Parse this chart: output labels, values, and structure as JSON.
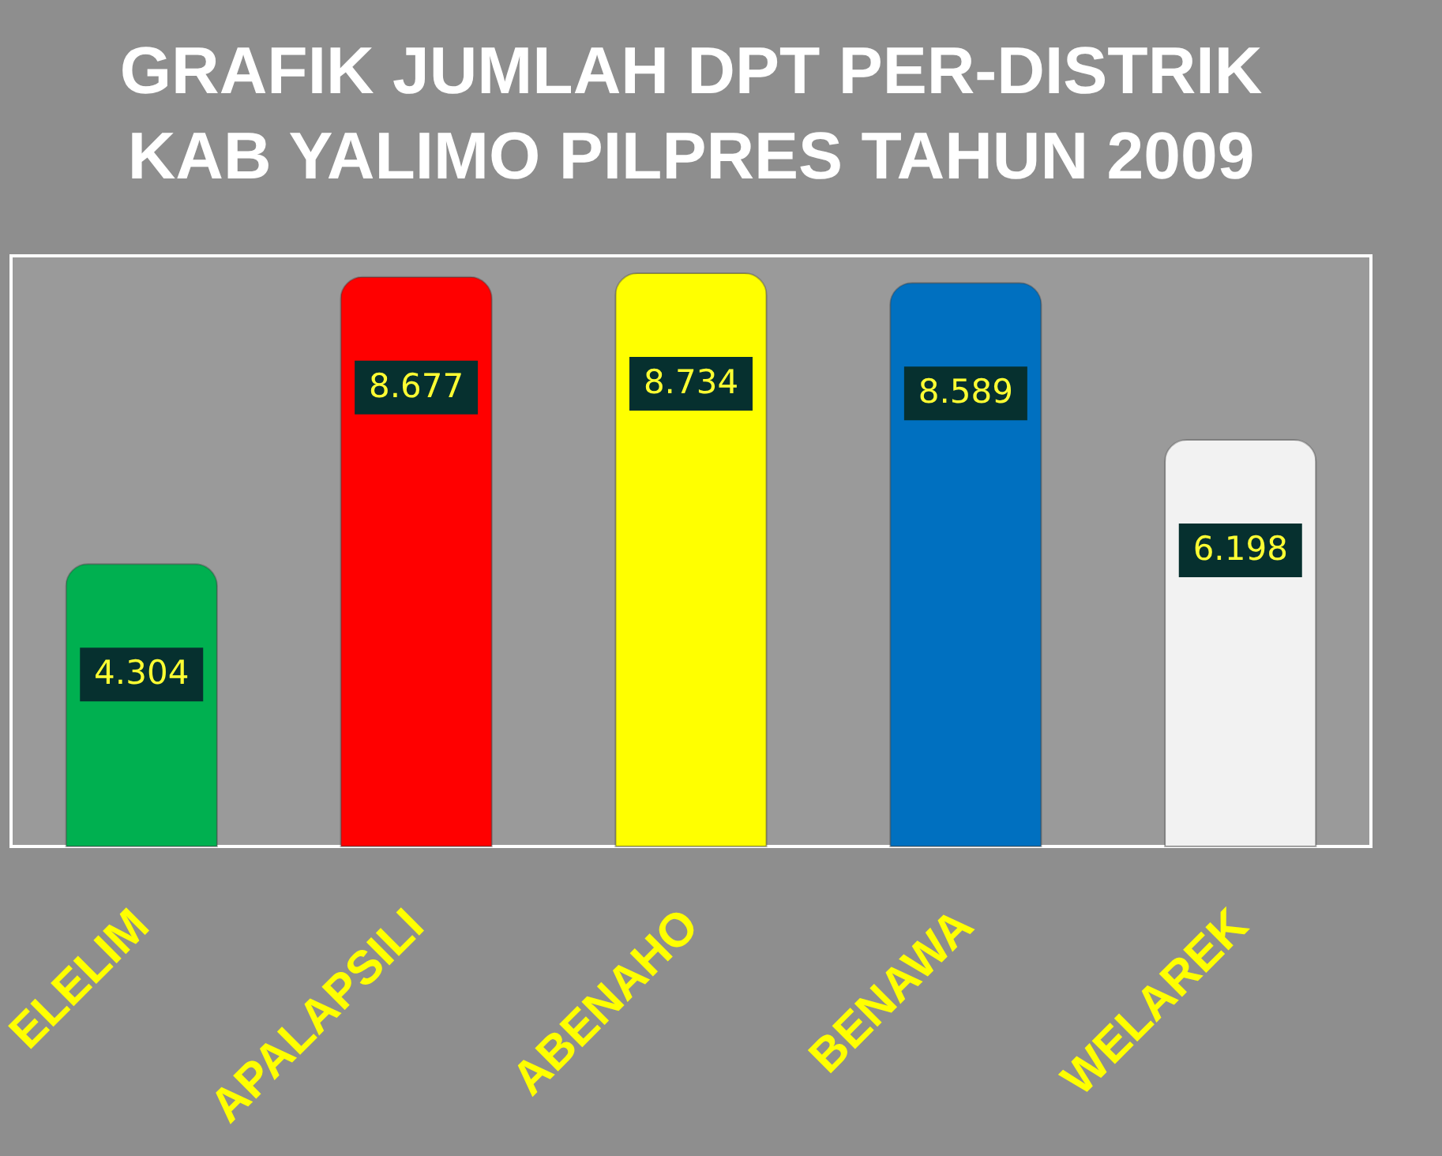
{
  "chart_data": {
    "type": "bar",
    "title": "GRAFIK JUMLAH DPT PER-DISTRIK\nKAB YALIMO PILPRES TAHUN 2009",
    "categories": [
      "ELELIM",
      "APALAPSILI",
      "ABENAHO",
      "BENAWA",
      "WELAREK"
    ],
    "values": [
      4.304,
      8.677,
      8.734,
      8.589,
      6.198
    ],
    "colors": [
      "#00b050",
      "#ff0000",
      "#ffff00",
      "#0070c0",
      "#f2f2f2"
    ],
    "data_labels": true,
    "tick_labels": "x"
  }
}
